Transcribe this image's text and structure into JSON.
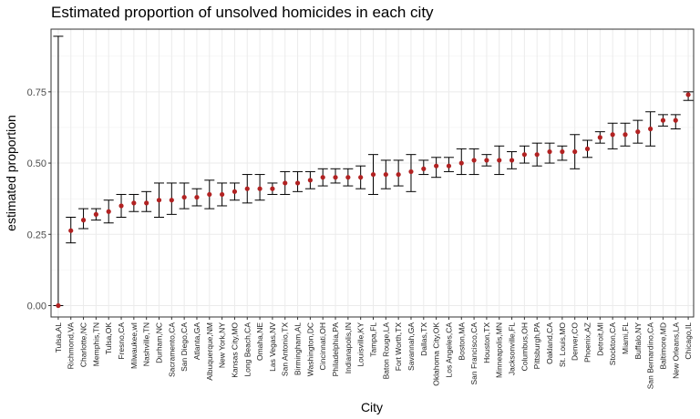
{
  "chart_data": {
    "type": "scatter",
    "title": "Estimated proportion of unsolved homicides in each city",
    "xlabel": "City",
    "ylabel": "estimated proportion",
    "ylim": [
      -0.04,
      0.97
    ],
    "yticks": [
      "0.00",
      "0.25",
      "0.50",
      "0.75"
    ],
    "ytick_values": [
      0,
      0.25,
      0.5,
      0.75
    ],
    "grid": true,
    "point_color": "#b22222",
    "errorbar_color": "#000000",
    "categories": [
      "Tulsa,AL",
      "Richmond,VA",
      "Charlotte,NC",
      "Memphis,TN",
      "Tulsa,OK",
      "Fresno,CA",
      "Milwaukee,wI",
      "Nashville,TN",
      "Durham,NC",
      "Sacramento,CA",
      "San Diego,CA",
      "Atlanta,GA",
      "Albuquerque,NM",
      "New York,NY",
      "Kansas City,MO",
      "Long Beach,CA",
      "Omaha,NE",
      "Las Vegas,NV",
      "San Antonio,TX",
      "Birmingham,AL",
      "Washington,DC",
      "Cincinnati,OH",
      "Philadelphia,PA",
      "Indianapolis,IN",
      "Louisville,KY",
      "Tampa,FL",
      "Baton Rouge,LA",
      "Fort Worth,TX",
      "Savannah,GA",
      "Dallas,TX",
      "Oklahoma City,OK",
      "Los Angeles,CA",
      "Boston,MA",
      "San Francisco,CA",
      "Houston,TX",
      "Minneapolis,MN",
      "Jacksonville,FL",
      "Columbus,OH",
      "Pittsburgh,PA",
      "Oakland,CA",
      "St. Louis,MO",
      "Denver,CO",
      "Phoenix,AZ",
      "Detroit,MI",
      "Stockton,CA",
      "Miami,FL",
      "Buffalo,NY",
      "San Bernardino,CA",
      "Baltimore,MD",
      "New Orleans,LA",
      "Chicago,IL"
    ],
    "estimate": [
      0.0,
      0.263,
      0.3,
      0.32,
      0.33,
      0.35,
      0.36,
      0.36,
      0.37,
      0.37,
      0.38,
      0.38,
      0.39,
      0.39,
      0.4,
      0.41,
      0.41,
      0.41,
      0.43,
      0.43,
      0.44,
      0.45,
      0.45,
      0.45,
      0.45,
      0.46,
      0.46,
      0.46,
      0.47,
      0.48,
      0.49,
      0.49,
      0.5,
      0.51,
      0.51,
      0.51,
      0.51,
      0.53,
      0.53,
      0.54,
      0.54,
      0.54,
      0.55,
      0.59,
      0.6,
      0.6,
      0.61,
      0.62,
      0.65,
      0.65,
      0.74
    ],
    "lower": [
      0.0,
      0.22,
      0.27,
      0.3,
      0.29,
      0.31,
      0.33,
      0.33,
      0.31,
      0.32,
      0.34,
      0.35,
      0.34,
      0.35,
      0.37,
      0.36,
      0.37,
      0.39,
      0.39,
      0.4,
      0.41,
      0.42,
      0.43,
      0.42,
      0.41,
      0.39,
      0.41,
      0.42,
      0.4,
      0.46,
      0.45,
      0.47,
      0.46,
      0.46,
      0.49,
      0.46,
      0.48,
      0.5,
      0.49,
      0.5,
      0.51,
      0.48,
      0.52,
      0.57,
      0.55,
      0.56,
      0.57,
      0.56,
      0.63,
      0.62,
      0.72
    ],
    "upper": [
      0.945,
      0.31,
      0.34,
      0.34,
      0.37,
      0.39,
      0.39,
      0.4,
      0.43,
      0.43,
      0.43,
      0.41,
      0.44,
      0.43,
      0.43,
      0.46,
      0.46,
      0.43,
      0.47,
      0.47,
      0.47,
      0.48,
      0.48,
      0.48,
      0.49,
      0.53,
      0.51,
      0.51,
      0.53,
      0.51,
      0.52,
      0.52,
      0.55,
      0.55,
      0.53,
      0.56,
      0.54,
      0.56,
      0.57,
      0.57,
      0.56,
      0.6,
      0.58,
      0.61,
      0.64,
      0.64,
      0.65,
      0.68,
      0.67,
      0.67,
      0.75
    ]
  }
}
